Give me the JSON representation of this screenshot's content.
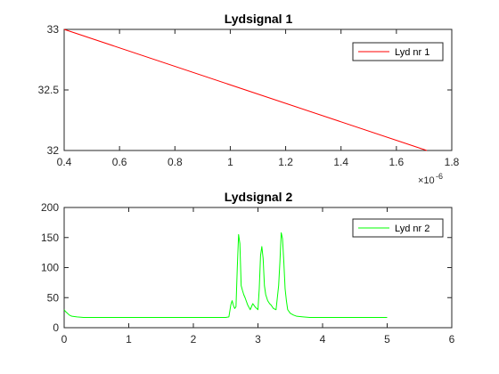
{
  "chart_data": [
    {
      "type": "line",
      "title": "Lydsignal 1",
      "xlabel": "",
      "ylabel": "",
      "xlim": [
        0.4,
        1.8
      ],
      "ylim": [
        32,
        33
      ],
      "x_ticks": [
        "0.4",
        "0.6",
        "0.8",
        "1",
        "1.2",
        "1.4",
        "1.6",
        "1.8"
      ],
      "x_tick_values": [
        0.4,
        0.6,
        0.8,
        1.0,
        1.2,
        1.4,
        1.6,
        1.8
      ],
      "y_ticks": [
        "32",
        "32.5",
        "33"
      ],
      "y_tick_values": [
        32,
        32.5,
        33
      ],
      "x_multiplier": {
        "base": "×10",
        "exponent": "-6"
      },
      "grid": false,
      "legend_position": "top-right",
      "series": [
        {
          "name": "Lyd nr 1",
          "color": "#ff0000",
          "x": [
            0.4,
            1.71
          ],
          "y": [
            33,
            32
          ]
        }
      ]
    },
    {
      "type": "line",
      "title": "Lydsignal 2",
      "xlabel": "",
      "ylabel": "",
      "xlim": [
        0,
        6
      ],
      "ylim": [
        0,
        200
      ],
      "x_ticks": [
        "0",
        "1",
        "2",
        "3",
        "4",
        "5",
        "6"
      ],
      "x_tick_values": [
        0,
        1,
        2,
        3,
        4,
        5,
        6
      ],
      "y_ticks": [
        "0",
        "50",
        "100",
        "150",
        "200"
      ],
      "y_tick_values": [
        0,
        50,
        100,
        150,
        200
      ],
      "grid": false,
      "legend_position": "top-right",
      "series": [
        {
          "name": "Lyd nr 2",
          "color": "#00ff00",
          "x": [
            0,
            0.02,
            0.05,
            0.08,
            0.12,
            0.2,
            0.3,
            0.5,
            0.8,
            1.0,
            1.3,
            1.6,
            1.9,
            2.2,
            2.4,
            2.5,
            2.55,
            2.58,
            2.6,
            2.62,
            2.64,
            2.66,
            2.68,
            2.7,
            2.72,
            2.74,
            2.76,
            2.78,
            2.8,
            2.84,
            2.88,
            2.92,
            2.96,
            3.0,
            3.02,
            3.04,
            3.06,
            3.08,
            3.1,
            3.12,
            3.15,
            3.18,
            3.2,
            3.24,
            3.28,
            3.3,
            3.32,
            3.34,
            3.36,
            3.38,
            3.4,
            3.42,
            3.44,
            3.46,
            3.5,
            3.55,
            3.6,
            3.7,
            3.8,
            4.0,
            4.2,
            4.5,
            4.8,
            5.0
          ],
          "y": [
            30,
            27,
            24,
            21,
            19,
            18,
            17,
            17,
            17,
            17,
            17,
            17,
            17,
            17,
            17,
            17,
            18,
            38,
            45,
            37,
            32,
            35,
            100,
            155,
            140,
            70,
            62,
            55,
            50,
            38,
            30,
            40,
            34,
            30,
            65,
            120,
            135,
            115,
            70,
            55,
            45,
            40,
            38,
            32,
            30,
            50,
            70,
            110,
            158,
            148,
            110,
            65,
            45,
            30,
            24,
            21,
            19,
            18,
            17,
            17,
            17,
            17,
            17,
            17
          ]
        }
      ]
    }
  ]
}
